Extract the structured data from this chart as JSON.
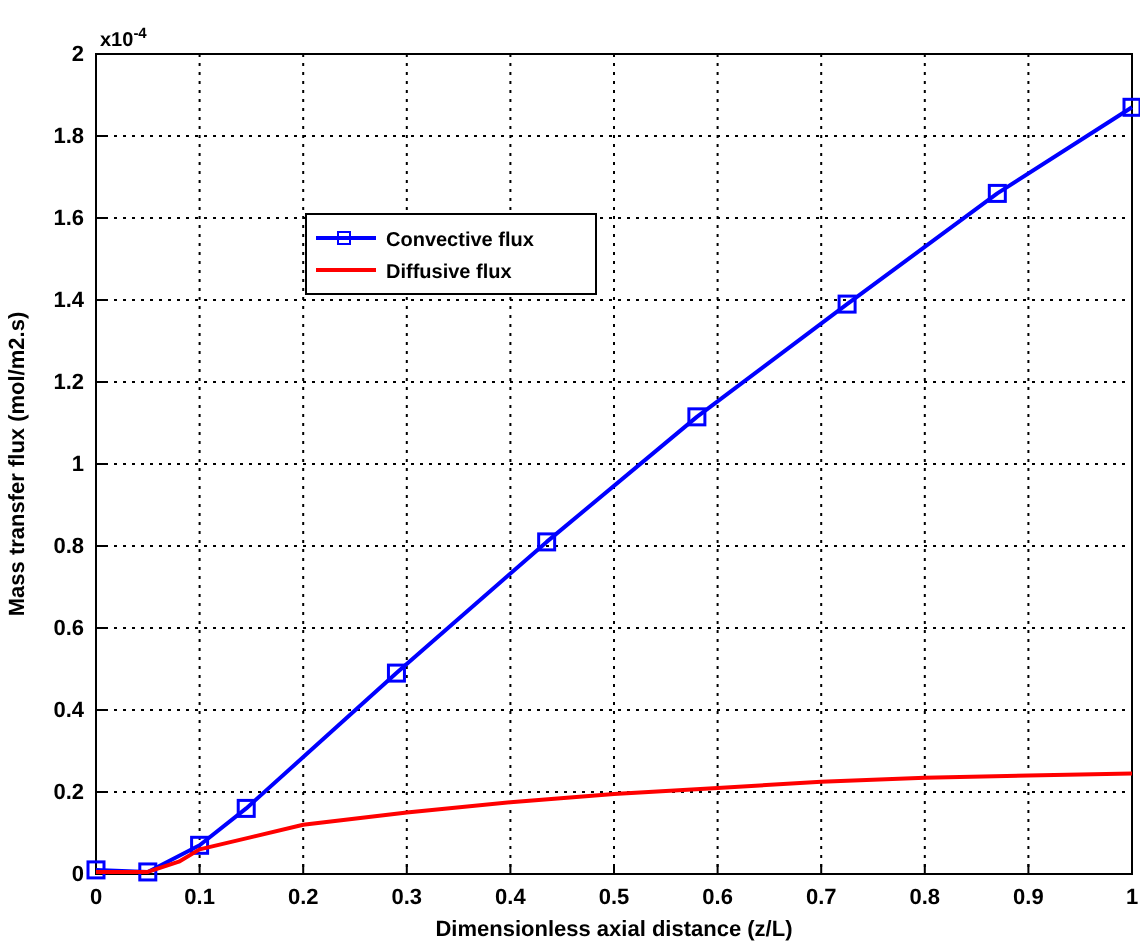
{
  "chart_data": {
    "type": "line",
    "xlabel": "Dimensionless axial distance (z/L)",
    "ylabel": "Mass transfer flux (mol/m2.s)",
    "annotations": [
      "x10$^{-4}$"
    ],
    "xlim": [
      0,
      1
    ],
    "xticks": [
      0,
      0.1,
      0.2,
      0.3,
      0.4,
      0.5,
      0.6,
      0.7,
      0.8,
      0.9,
      1
    ],
    "ylim": [
      0,
      2
    ],
    "yticks": [
      0,
      0.2,
      0.4,
      0.6,
      0.8,
      1,
      1.2,
      1.4,
      1.6,
      1.8,
      2
    ],
    "grid": true,
    "legend": "top left",
    "line_style": "solid",
    "series": [
      {
        "name": "Convective flux",
        "color": "#0000ff",
        "marker": "square",
        "x": [
          0,
          0.05,
          0.1,
          0.145,
          0.29,
          0.435,
          0.58,
          0.725,
          0.87,
          1
        ],
        "values": [
          0.01,
          0.005,
          0.07,
          0.16,
          0.49,
          0.81,
          1.115,
          1.39,
          1.66,
          1.87
        ]
      },
      {
        "name": "Diffusive flux",
        "color": "#ff0000",
        "marker": "none",
        "x": [
          0,
          0.05,
          0.08,
          0.1,
          0.15,
          0.2,
          0.3,
          0.4,
          0.5,
          0.6,
          0.7,
          0.8,
          0.9,
          1
        ],
        "values": [
          0.005,
          0.005,
          0.03,
          0.06,
          0.09,
          0.12,
          0.15,
          0.175,
          0.195,
          0.21,
          0.225,
          0.235,
          0.24,
          0.245
        ]
      }
    ]
  }
}
